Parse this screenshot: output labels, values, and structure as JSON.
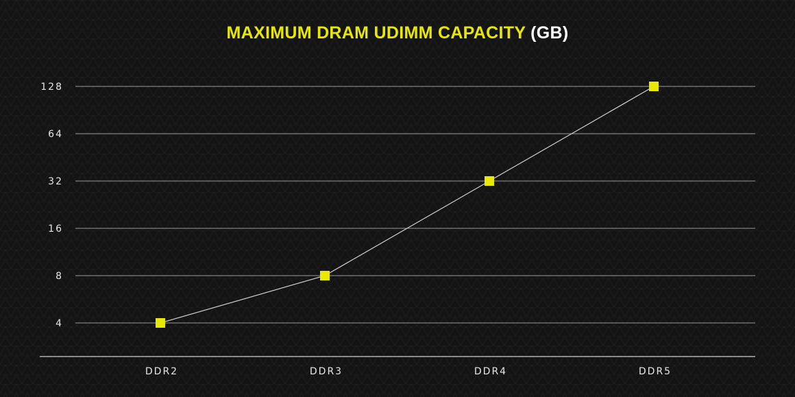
{
  "chart_data": {
    "type": "line",
    "title": "MAXIMUM DRAM UDIMM CAPACITY",
    "title_unit": "(GB)",
    "categories": [
      "DDR2",
      "DDR3",
      "DDR4",
      "DDR5"
    ],
    "values": [
      4,
      8,
      32,
      128
    ],
    "y_ticks": [
      4,
      8,
      16,
      32,
      64,
      128
    ],
    "y_scale": "log2",
    "ylim": [
      4,
      128
    ],
    "grid": true,
    "legend": "none",
    "colors": {
      "background": "#141414",
      "title_accent": "#e8e800",
      "marker": "#e8e800",
      "line": "#d0d0d0",
      "grid": "#9a9a9a",
      "text": "#e6e6e6"
    }
  }
}
